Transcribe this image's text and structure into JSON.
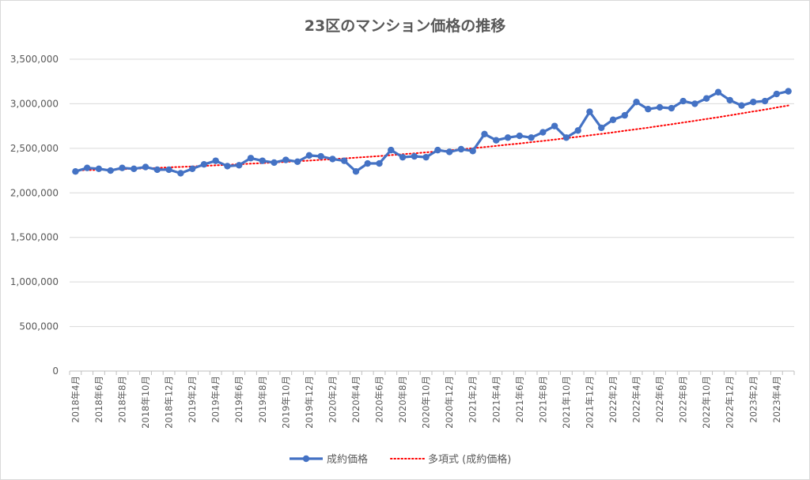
{
  "chart_data": {
    "type": "line",
    "title": "23区のマンション価格の推移",
    "ylim": [
      0,
      3500000
    ],
    "yticks": [
      "0",
      "500,000",
      "1,000,000",
      "1,500,000",
      "2,000,000",
      "2,500,000",
      "3,000,000",
      "3,500,000"
    ],
    "ytick_values": [
      0,
      500000,
      1000000,
      1500000,
      2000000,
      2500000,
      3000000,
      3500000
    ],
    "categories": [
      "2018年4月",
      "2018年5月",
      "2018年6月",
      "2018年7月",
      "2018年8月",
      "2018年9月",
      "2018年10月",
      "2018年11月",
      "2018年12月",
      "2019年1月",
      "2019年2月",
      "2019年3月",
      "2019年4月",
      "2019年5月",
      "2019年6月",
      "2019年7月",
      "2019年8月",
      "2019年9月",
      "2019年10月",
      "2019年11月",
      "2019年12月",
      "2020年1月",
      "2020年2月",
      "2020年3月",
      "2020年4月",
      "2020年5月",
      "2020年6月",
      "2020年7月",
      "2020年8月",
      "2020年9月",
      "2020年10月",
      "2020年11月",
      "2020年12月",
      "2021年1月",
      "2021年2月",
      "2021年3月",
      "2021年4月",
      "2021年5月",
      "2021年6月",
      "2021年7月",
      "2021年8月",
      "2021年9月",
      "2021年10月",
      "2021年11月",
      "2021年12月",
      "2022年1月",
      "2022年2月",
      "2022年3月",
      "2022年4月",
      "2022年5月",
      "2022年6月",
      "2022年7月",
      "2022年8月",
      "2022年9月",
      "2022年10月",
      "2022年11月",
      "2022年12月",
      "2023年1月",
      "2023年2月",
      "2023年3月",
      "2023年4月",
      "2023年5月"
    ],
    "x_tick_labels": [
      "2018年4月",
      "2018年6月",
      "2018年8月",
      "2018年10月",
      "2018年12月",
      "2019年2月",
      "2019年4月",
      "2019年6月",
      "2019年8月",
      "2019年10月",
      "2019年12月",
      "2020年2月",
      "2020年4月",
      "2020年6月",
      "2020年8月",
      "2020年10月",
      "2020年12月",
      "2021年2月",
      "2021年4月",
      "2021年6月",
      "2021年8月",
      "2021年10月",
      "2021年12月",
      "2022年2月",
      "2022年4月",
      "2022年6月",
      "2022年8月",
      "2022年10月",
      "2022年12月",
      "2023年2月",
      "2023年4月"
    ],
    "series": [
      {
        "name": "成約価格",
        "color": "#4472c4",
        "style": "line-with-markers",
        "values": [
          2240000,
          2280000,
          2270000,
          2250000,
          2280000,
          2270000,
          2290000,
          2260000,
          2260000,
          2220000,
          2270000,
          2320000,
          2360000,
          2300000,
          2310000,
          2390000,
          2360000,
          2340000,
          2370000,
          2350000,
          2420000,
          2410000,
          2380000,
          2360000,
          2240000,
          2330000,
          2330000,
          2480000,
          2400000,
          2410000,
          2400000,
          2480000,
          2460000,
          2490000,
          2470000,
          2660000,
          2590000,
          2620000,
          2640000,
          2620000,
          2680000,
          2750000,
          2620000,
          2700000,
          2910000,
          2730000,
          2820000,
          2870000,
          3020000,
          2940000,
          2960000,
          2950000,
          3030000,
          3000000,
          3060000,
          3130000,
          3040000,
          2980000,
          3020000,
          3030000,
          3110000,
          3140000
        ]
      },
      {
        "name": "多項式 (成約価格)",
        "color": "#ff0000",
        "style": "dotted-trendline",
        "values": [
          2253000,
          2255000,
          2258000,
          2262000,
          2266000,
          2270000,
          2275000,
          2280000,
          2286000,
          2291000,
          2297000,
          2303000,
          2309000,
          2315000,
          2321000,
          2328000,
          2334000,
          2341000,
          2348000,
          2355000,
          2362000,
          2370000,
          2378000,
          2386000,
          2395000,
          2404000,
          2413000,
          2423000,
          2433000,
          2444000,
          2454000,
          2466000,
          2477000,
          2489000,
          2501000,
          2514000,
          2527000,
          2541000,
          2554000,
          2569000,
          2583000,
          2598000,
          2614000,
          2629000,
          2646000,
          2662000,
          2679000,
          2697000,
          2714000,
          2732000,
          2751000,
          2770000,
          2789000,
          2809000,
          2829000,
          2849000,
          2870000,
          2892000,
          2913000,
          2935000,
          2958000,
          2981000
        ]
      }
    ],
    "legend": {
      "position": "bottom",
      "items": [
        "成約価格",
        "多項式 (成約価格)"
      ]
    },
    "grid": "horizontal"
  }
}
